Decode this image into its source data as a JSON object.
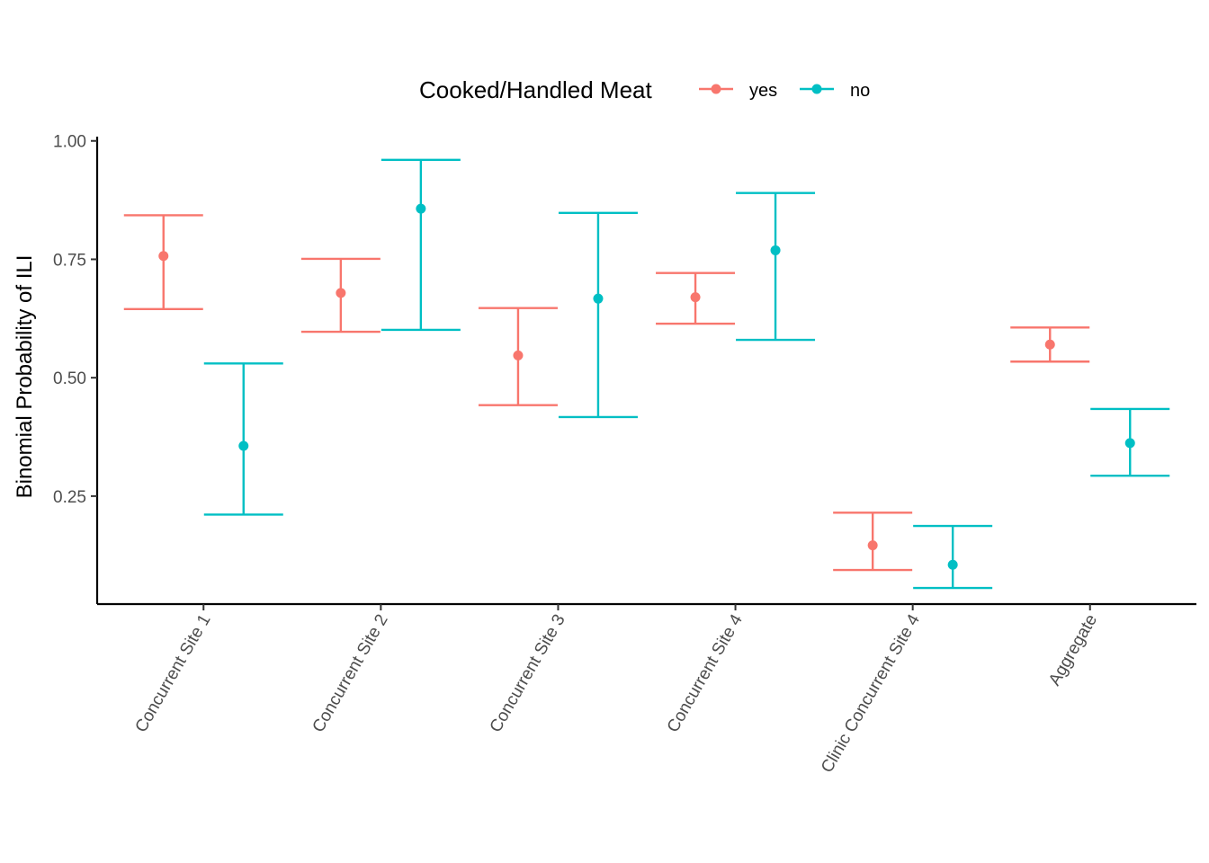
{
  "chart_data": {
    "type": "errorbar",
    "title": "",
    "xlabel": "",
    "ylabel": "Binomial Probability of ILI",
    "ylim": [
      0.022,
      1.009
    ],
    "yticks": [
      0.25,
      0.5,
      0.75,
      1.0
    ],
    "ytick_labels": [
      "0.25",
      "0.50",
      "0.75",
      "1.00"
    ],
    "grid": false,
    "legend": {
      "title": "Cooked/Handled Meat",
      "position": "top"
    },
    "categories": [
      "Concurrent Site 1",
      "Concurrent Site 2",
      "Concurrent Site 3",
      "Concurrent Site 4",
      "Clinic Concurrent Site 4",
      "Aggregate"
    ],
    "series": [
      {
        "name": "yes",
        "color": "#F8766D",
        "values": [
          0.757,
          0.679,
          0.547,
          0.67,
          0.146,
          0.57
        ],
        "lower": [
          0.645,
          0.597,
          0.442,
          0.614,
          0.094,
          0.534
        ],
        "upper": [
          0.843,
          0.751,
          0.647,
          0.721,
          0.215,
          0.606
        ]
      },
      {
        "name": "no",
        "color": "#00BFC4",
        "values": [
          0.356,
          0.857,
          0.667,
          0.769,
          0.105,
          0.362
        ],
        "lower": [
          0.211,
          0.601,
          0.417,
          0.58,
          0.056,
          0.293
        ],
        "upper": [
          0.53,
          0.96,
          0.848,
          0.89,
          0.187,
          0.434
        ]
      }
    ]
  }
}
